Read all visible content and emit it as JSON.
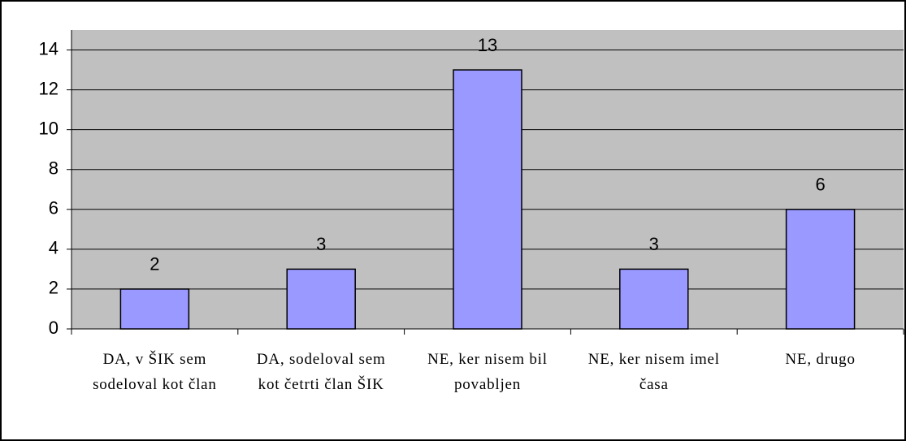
{
  "chart_data": {
    "type": "bar",
    "categories": [
      "DA, v ŠIK sem sodeloval kot član",
      "DA, sodeloval sem kot četrti član ŠIK",
      "NE, ker nisem bil povabljen",
      "NE, ker nisem imel časa",
      "NE, drugo"
    ],
    "values": [
      2,
      3,
      13,
      3,
      6
    ],
    "color": "#9999ff",
    "ylim": [
      0,
      15
    ],
    "yticks": [
      0,
      2,
      4,
      6,
      8,
      10,
      12,
      14
    ],
    "grid": true
  }
}
